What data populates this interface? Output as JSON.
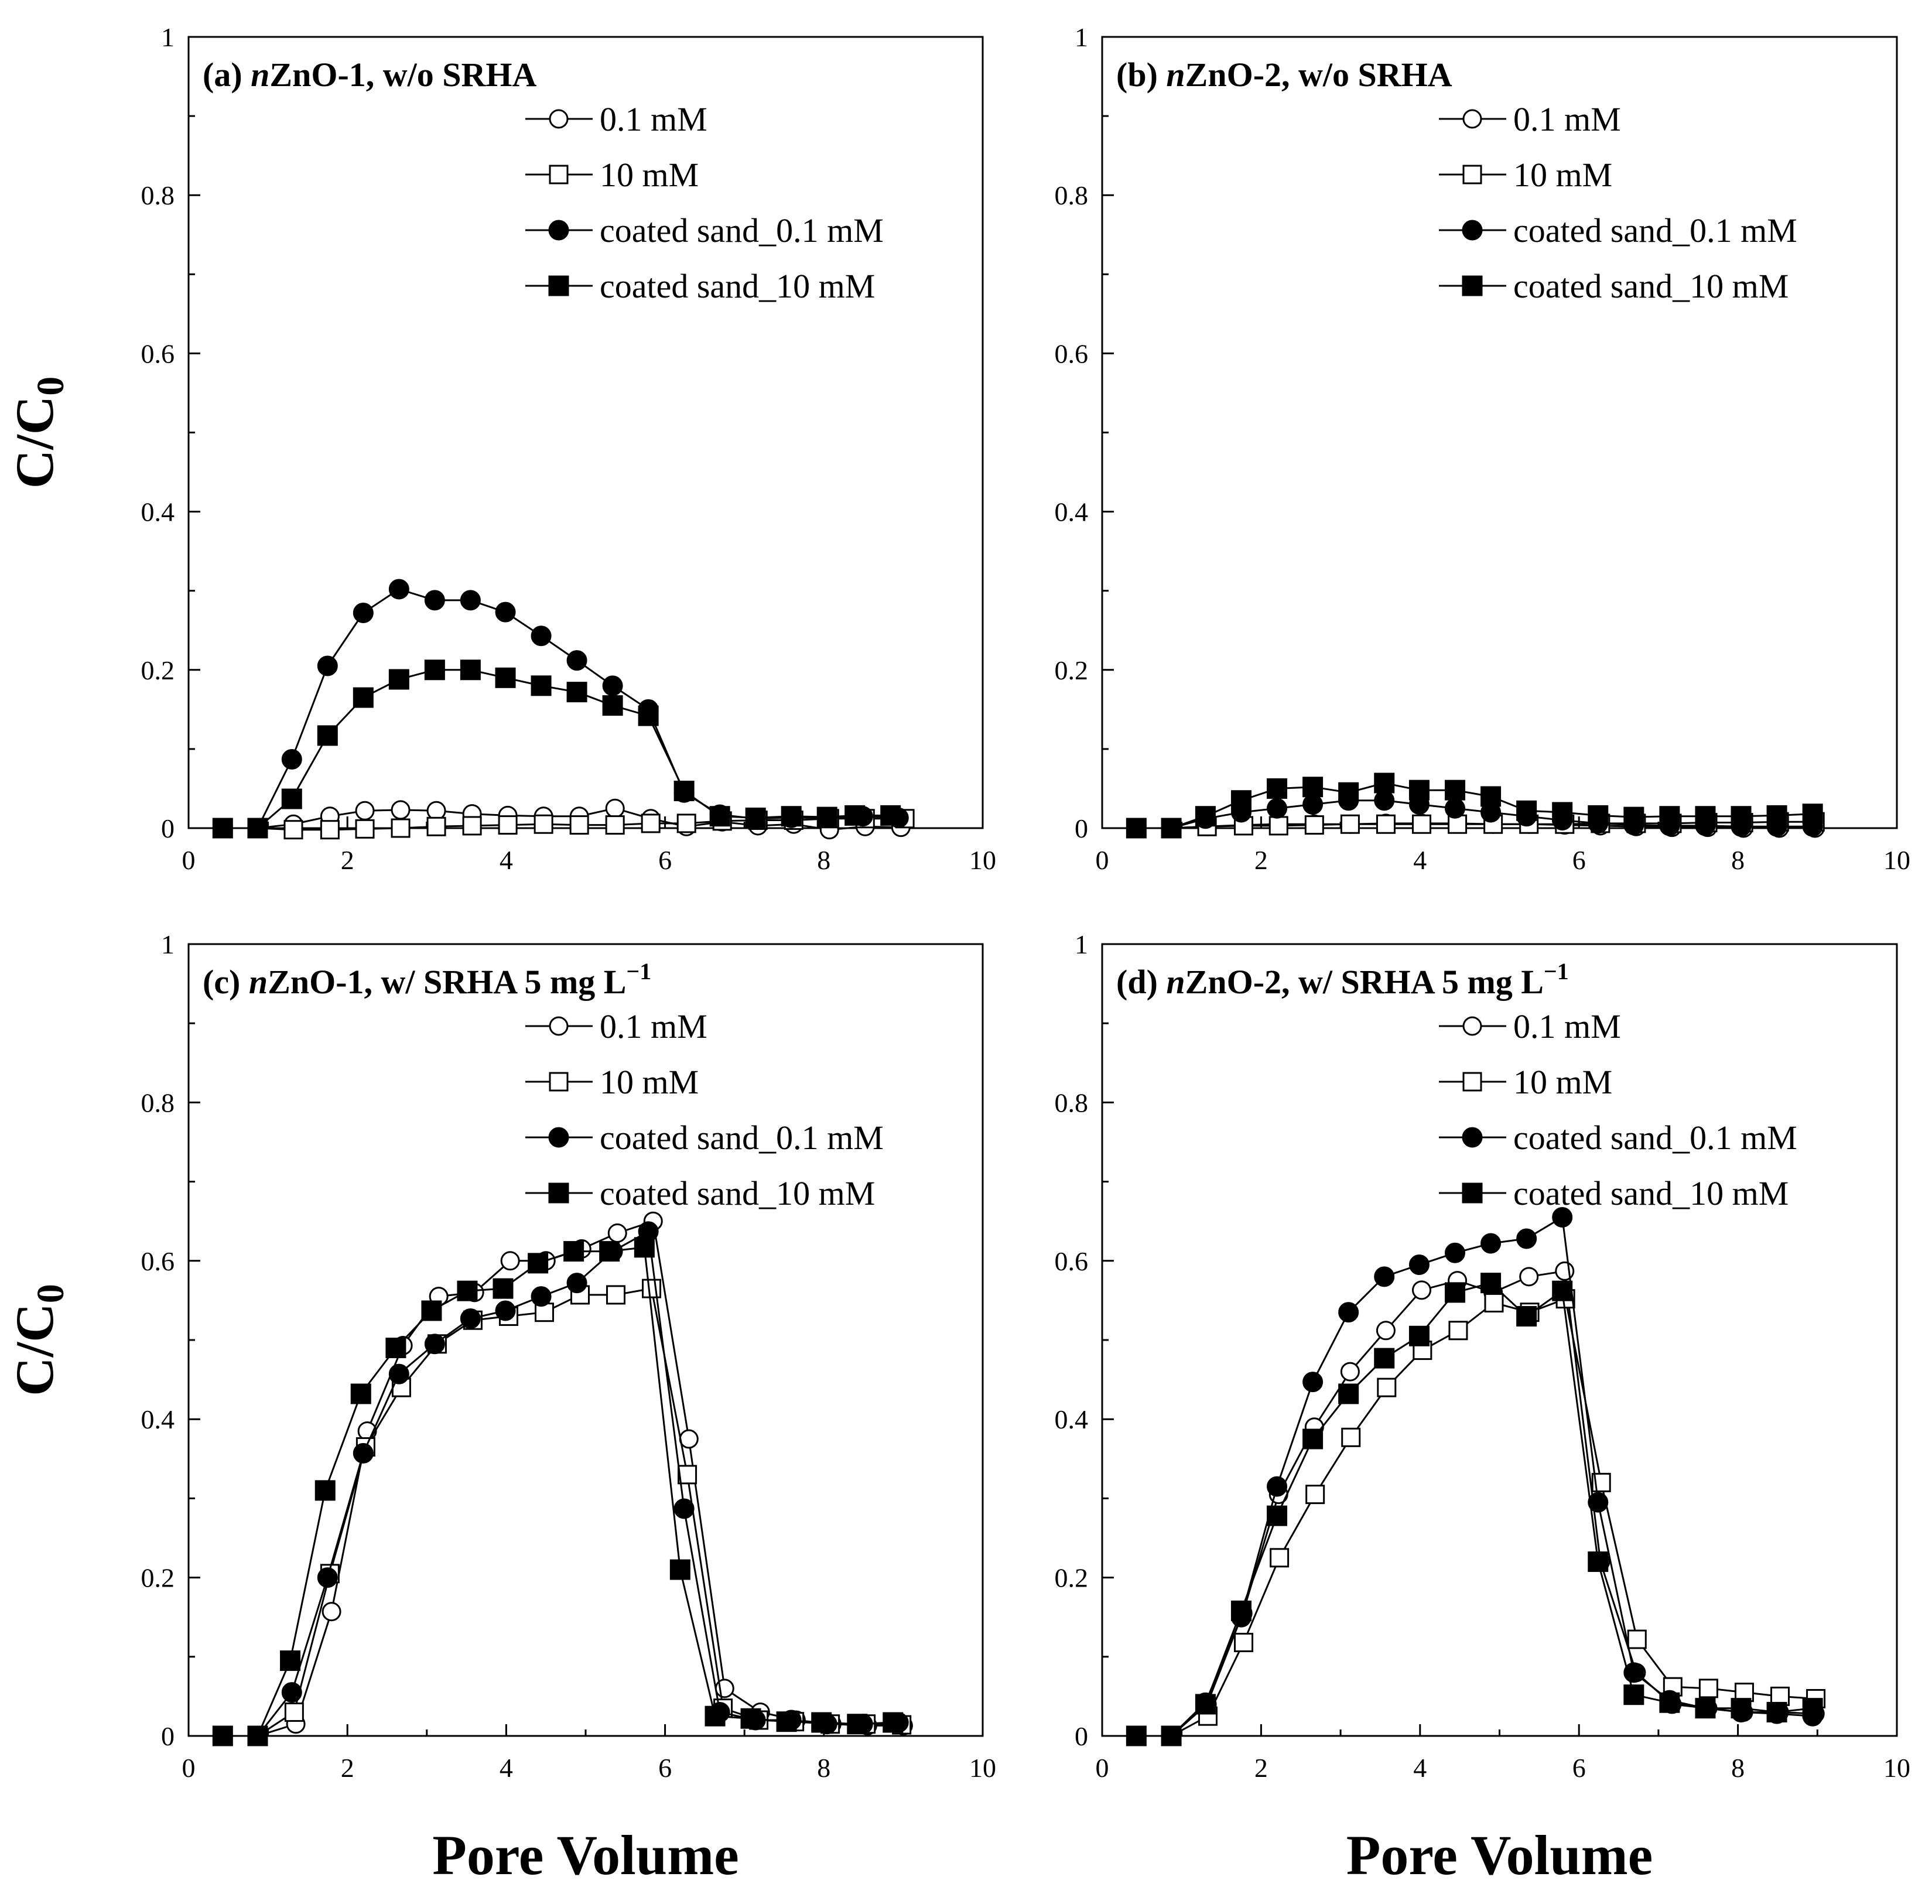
{
  "chart_data": [
    {
      "type": "line",
      "title": "(a) nZnO-1, w/o SRHA",
      "title_parts": {
        "prefix": "(a) ",
        "italic": "n",
        "rest": "ZnO-1, w/o SRHA",
        "sup": ""
      },
      "xlabel": "",
      "ylabel": "C/C0",
      "xlim": [
        0,
        10
      ],
      "ylim": [
        0,
        1
      ],
      "xticks": [
        "0",
        "2",
        "4",
        "6",
        "8",
        "10"
      ],
      "yticks": [
        "0",
        "0.2",
        "0.4",
        "0.6",
        "0.8",
        "1"
      ],
      "legend_position": "top-right",
      "series": [
        {
          "name": "0.1 mM",
          "marker": "circle-open",
          "x": [
            0.43,
            0.87,
            1.32,
            1.78,
            2.22,
            2.67,
            3.12,
            3.57,
            4.02,
            4.47,
            4.92,
            5.37,
            5.82,
            6.27,
            6.72,
            7.17,
            7.62,
            8.07,
            8.52,
            8.97
          ],
          "y": [
            0,
            0,
            0.005,
            0.015,
            0.022,
            0.023,
            0.022,
            0.018,
            0.016,
            0.015,
            0.015,
            0.025,
            0.012,
            0.002,
            0.008,
            0.003,
            0.005,
            -0.002,
            0.002,
            0.001
          ]
        },
        {
          "name": "10 mM",
          "marker": "square-open",
          "x": [
            0.43,
            0.87,
            1.32,
            1.78,
            2.22,
            2.67,
            3.12,
            3.57,
            4.02,
            4.47,
            4.92,
            5.37,
            5.82,
            6.27,
            6.72,
            7.17,
            7.62,
            8.07,
            8.52,
            9.02
          ],
          "y": [
            0,
            0,
            -0.002,
            -0.002,
            -0.001,
            0,
            0.002,
            0.003,
            0.004,
            0.005,
            0.004,
            0.004,
            0.006,
            0.006,
            0.009,
            0.01,
            0.01,
            0.012,
            0.012,
            0.012
          ]
        },
        {
          "name": "coated sand_0.1 mM",
          "marker": "circle-filled",
          "x": [
            0.43,
            0.87,
            1.3,
            1.75,
            2.2,
            2.65,
            3.1,
            3.55,
            3.99,
            4.44,
            4.89,
            5.34,
            5.79,
            6.24,
            6.69,
            7.14,
            7.59,
            8.04,
            8.49,
            8.94
          ],
          "y": [
            0,
            0,
            0.087,
            0.205,
            0.272,
            0.302,
            0.288,
            0.288,
            0.273,
            0.243,
            0.212,
            0.18,
            0.15,
            0.045,
            0.017,
            0.012,
            0.013,
            0.013,
            0.015,
            0.013
          ]
        },
        {
          "name": "coated sand_10 mM",
          "marker": "square-filled",
          "x": [
            0.43,
            0.87,
            1.3,
            1.75,
            2.2,
            2.65,
            3.1,
            3.55,
            3.99,
            4.44,
            4.89,
            5.34,
            5.79,
            6.24,
            6.69,
            7.14,
            7.59,
            8.04,
            8.39,
            8.84
          ],
          "y": [
            0,
            0,
            0.037,
            0.117,
            0.165,
            0.188,
            0.2,
            0.2,
            0.19,
            0.18,
            0.172,
            0.155,
            0.142,
            0.047,
            0.015,
            0.013,
            0.015,
            0.014,
            0.016,
            0.016
          ]
        }
      ]
    },
    {
      "type": "line",
      "title": "(b) nZnO-2, w/o SRHA",
      "title_parts": {
        "prefix": "(b) ",
        "italic": "n",
        "rest": "ZnO-2, w/o SRHA",
        "sup": ""
      },
      "xlabel": "",
      "ylabel": "",
      "xlim": [
        0,
        10
      ],
      "ylim": [
        0,
        1
      ],
      "xticks": [
        "0",
        "2",
        "4",
        "6",
        "8",
        "10"
      ],
      "yticks": [
        "0",
        "0.2",
        "0.4",
        "0.6",
        "0.8",
        "1"
      ],
      "legend_position": "top-right",
      "series": [
        {
          "name": "0.1 mM",
          "marker": "circle-open",
          "x": [
            0.43,
            0.87,
            1.32,
            1.78,
            2.22,
            2.67,
            3.12,
            3.57,
            4.02,
            4.47,
            4.92,
            5.37,
            5.82,
            6.27,
            6.72,
            7.17,
            7.62,
            8.07,
            8.52,
            8.97
          ],
          "y": [
            0,
            0,
            0.002,
            0.004,
            0.005,
            0.005,
            0.005,
            0.006,
            0.006,
            0.006,
            0.005,
            0.005,
            0.004,
            0.003,
            0.002,
            0.001,
            0.001,
            0,
            0,
            0
          ]
        },
        {
          "name": "10 mM",
          "marker": "square-open",
          "x": [
            0.43,
            0.87,
            1.32,
            1.78,
            2.22,
            2.67,
            3.12,
            3.57,
            4.02,
            4.47,
            4.92,
            5.37,
            5.82,
            6.27,
            6.72,
            7.17,
            7.62,
            8.07,
            8.52,
            8.97
          ],
          "y": [
            0,
            0,
            0.002,
            0.003,
            0.003,
            0.004,
            0.005,
            0.005,
            0.005,
            0.005,
            0.005,
            0.005,
            0.005,
            0.006,
            0.006,
            0.006,
            0.007,
            0.007,
            0.008,
            0.008
          ]
        },
        {
          "name": "coated sand_0.1 mM",
          "marker": "circle-filled",
          "x": [
            0.43,
            0.87,
            1.3,
            1.75,
            2.2,
            2.65,
            3.1,
            3.55,
            3.99,
            4.44,
            4.89,
            5.34,
            5.79,
            6.24,
            6.69,
            7.14,
            7.59,
            8.04,
            8.49,
            8.94
          ],
          "y": [
            0,
            0,
            0.012,
            0.02,
            0.025,
            0.03,
            0.035,
            0.035,
            0.03,
            0.025,
            0.02,
            0.015,
            0.01,
            0.006,
            0.004,
            0.003,
            0.003,
            0.002,
            0.002,
            0.002
          ]
        },
        {
          "name": "coated sand_10 mM",
          "marker": "square-filled",
          "x": [
            0.43,
            0.87,
            1.3,
            1.75,
            2.2,
            2.65,
            3.1,
            3.55,
            3.99,
            4.44,
            4.89,
            5.34,
            5.79,
            6.24,
            6.69,
            7.14,
            7.59,
            8.04,
            8.49,
            8.94
          ],
          "y": [
            0,
            0,
            0.015,
            0.035,
            0.05,
            0.052,
            0.045,
            0.057,
            0.048,
            0.048,
            0.04,
            0.022,
            0.02,
            0.016,
            0.014,
            0.015,
            0.015,
            0.015,
            0.016,
            0.018
          ]
        }
      ]
    },
    {
      "type": "line",
      "title": "(c) nZnO-1, w/ SRHA 5 mg L−1",
      "title_parts": {
        "prefix": "(c) ",
        "italic": "n",
        "rest": "ZnO-1, w/ SRHA 5 mg L",
        "sup": "−1"
      },
      "xlabel": "Pore Volume",
      "ylabel": "C/C0",
      "xlim": [
        0,
        10
      ],
      "ylim": [
        0,
        1
      ],
      "xticks": [
        "0",
        "2",
        "4",
        "6",
        "8",
        "10"
      ],
      "yticks": [
        "0",
        "0.2",
        "0.4",
        "0.6",
        "0.8",
        "1"
      ],
      "legend_position": "top-right",
      "series": [
        {
          "name": "0.1 mM",
          "marker": "circle-open",
          "x": [
            0.43,
            0.87,
            1.35,
            1.8,
            2.25,
            2.7,
            3.15,
            3.6,
            4.05,
            4.5,
            4.95,
            5.4,
            5.85,
            6.3,
            6.75,
            7.2,
            7.65,
            8.1,
            8.55,
            9.0
          ],
          "y": [
            0,
            0,
            0.015,
            0.157,
            0.385,
            0.493,
            0.555,
            0.56,
            0.6,
            0.6,
            0.615,
            0.635,
            0.65,
            0.375,
            0.06,
            0.03,
            0.02,
            0.015,
            0.013,
            0.013
          ]
        },
        {
          "name": "10 mM",
          "marker": "square-open",
          "x": [
            0.43,
            0.87,
            1.33,
            1.78,
            2.23,
            2.68,
            3.13,
            3.58,
            4.03,
            4.48,
            4.93,
            5.38,
            5.83,
            6.28,
            6.73,
            7.18,
            7.63,
            8.08,
            8.53,
            8.98
          ],
          "y": [
            0,
            0,
            0.03,
            0.205,
            0.365,
            0.44,
            0.495,
            0.525,
            0.53,
            0.535,
            0.557,
            0.557,
            0.565,
            0.33,
            0.035,
            0.02,
            0.018,
            0.015,
            0.015,
            0.014
          ]
        },
        {
          "name": "coated sand_0.1 mM",
          "marker": "circle-filled",
          "x": [
            0.43,
            0.87,
            1.3,
            1.75,
            2.2,
            2.65,
            3.1,
            3.55,
            3.99,
            4.44,
            4.89,
            5.34,
            5.79,
            6.24,
            6.69,
            7.14,
            7.59,
            8.04,
            8.49,
            8.94
          ],
          "y": [
            0,
            0,
            0.055,
            0.2,
            0.357,
            0.457,
            0.495,
            0.527,
            0.537,
            0.555,
            0.572,
            0.612,
            0.637,
            0.287,
            0.03,
            0.02,
            0.02,
            0.015,
            0.015,
            0.017
          ]
        },
        {
          "name": "coated sand_10 mM",
          "marker": "square-filled",
          "x": [
            0.43,
            0.87,
            1.28,
            1.72,
            2.17,
            2.61,
            3.06,
            3.51,
            3.96,
            4.4,
            4.85,
            5.3,
            5.74,
            6.19,
            6.63,
            7.08,
            7.53,
            7.97,
            8.42,
            8.87
          ],
          "y": [
            0,
            0,
            0.095,
            0.31,
            0.432,
            0.49,
            0.537,
            0.562,
            0.565,
            0.597,
            0.612,
            0.612,
            0.617,
            0.21,
            0.025,
            0.022,
            0.018,
            0.017,
            0.015,
            0.017
          ]
        }
      ]
    },
    {
      "type": "line",
      "title": "(d) nZnO-2, w/ SRHA 5 mg L−1",
      "title_parts": {
        "prefix": "(d) ",
        "italic": "n",
        "rest": "ZnO-2, w/ SRHA 5 mg L",
        "sup": "−1"
      },
      "xlabel": "Pore Volume",
      "ylabel": "",
      "xlim": [
        0,
        10
      ],
      "ylim": [
        0,
        1
      ],
      "xticks": [
        "0",
        "2",
        "4",
        "6",
        "8",
        "10"
      ],
      "yticks": [
        "0",
        "0.2",
        "0.4",
        "0.6",
        "0.8",
        "1"
      ],
      "legend_position": "top-right",
      "series": [
        {
          "name": "0.1 mM",
          "marker": "circle-open",
          "x": [
            0.43,
            0.87,
            1.32,
            1.77,
            2.22,
            2.67,
            3.12,
            3.57,
            4.02,
            4.47,
            4.92,
            5.37,
            5.82,
            6.27,
            6.72,
            7.17,
            7.62,
            8.07,
            8.52,
            8.97
          ],
          "y": [
            0,
            0,
            0.04,
            0.155,
            0.305,
            0.39,
            0.46,
            0.512,
            0.563,
            0.575,
            0.56,
            0.58,
            0.587,
            0.22,
            0.08,
            0.04,
            0.035,
            0.03,
            0.03,
            0.028
          ]
        },
        {
          "name": "10 mM",
          "marker": "square-open",
          "x": [
            0.43,
            0.87,
            1.33,
            1.78,
            2.23,
            2.68,
            3.13,
            3.58,
            4.03,
            4.48,
            4.93,
            5.38,
            5.83,
            6.28,
            6.73,
            7.18,
            7.63,
            8.08,
            8.53,
            8.98
          ],
          "y": [
            0,
            0,
            0.025,
            0.118,
            0.225,
            0.305,
            0.377,
            0.44,
            0.487,
            0.512,
            0.547,
            0.535,
            0.552,
            0.32,
            0.122,
            0.062,
            0.06,
            0.055,
            0.05,
            0.047
          ]
        },
        {
          "name": "coated sand_0.1 mM",
          "marker": "circle-filled",
          "x": [
            0.43,
            0.87,
            1.3,
            1.75,
            2.2,
            2.65,
            3.1,
            3.55,
            3.99,
            4.44,
            4.89,
            5.34,
            5.79,
            6.24,
            6.69,
            7.14,
            7.59,
            8.04,
            8.49,
            8.94
          ],
          "y": [
            0,
            0,
            0.042,
            0.15,
            0.315,
            0.447,
            0.535,
            0.58,
            0.595,
            0.61,
            0.622,
            0.628,
            0.655,
            0.295,
            0.08,
            0.045,
            0.035,
            0.03,
            0.028,
            0.025
          ]
        },
        {
          "name": "coated sand_10 mM",
          "marker": "square-filled",
          "x": [
            0.43,
            0.87,
            1.3,
            1.75,
            2.2,
            2.65,
            3.1,
            3.55,
            3.99,
            4.44,
            4.89,
            5.34,
            5.79,
            6.24,
            6.69,
            7.14,
            7.59,
            8.04,
            8.49,
            8.94
          ],
          "y": [
            0,
            0,
            0.04,
            0.158,
            0.278,
            0.375,
            0.432,
            0.477,
            0.505,
            0.56,
            0.572,
            0.53,
            0.562,
            0.22,
            0.052,
            0.042,
            0.035,
            0.035,
            0.03,
            0.035
          ]
        }
      ]
    }
  ]
}
